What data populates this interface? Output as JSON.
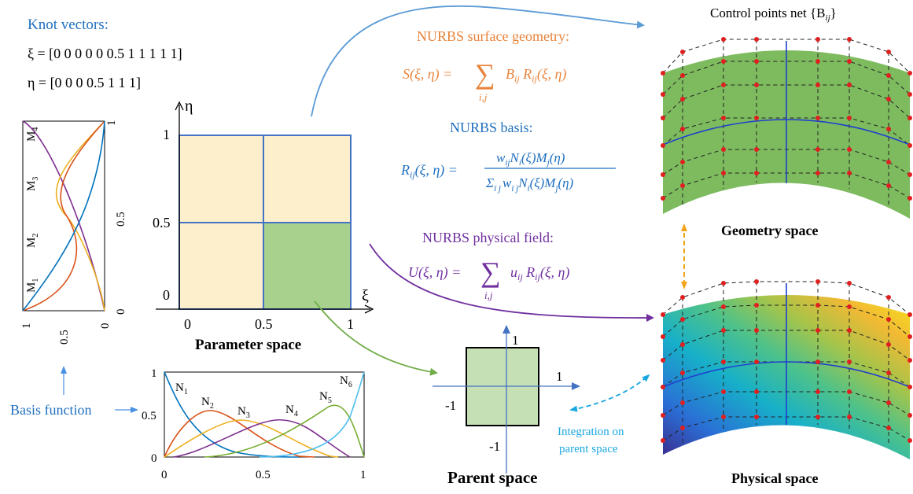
{
  "knot_vectors": {
    "title": "Knot vectors:",
    "xi": "ξ = [0 0 0 0 0 0.5 1 1 1 1 1]",
    "eta": "η = [0 0 0 0.5 1 1 1]"
  },
  "nurbs_surface": {
    "title": "NURBS surface geometry:",
    "lhs": "S(ξ, η) =",
    "sum_sub": "i,j",
    "rhs": "B",
    "rhs_sub": "ij",
    "rhs2": " R",
    "rhs2_sub": "ij",
    "rhs3": "(ξ, η)"
  },
  "nurbs_basis": {
    "title": "NURBS basis:",
    "lhs": "R",
    "lhs_sub": "ij",
    "lhs2": "(ξ, η) =",
    "num": "w",
    "num_sub": "ij",
    "num2": "N",
    "num2_sub": "i",
    "num3": "(ξ)M",
    "num3_sub": "j",
    "num4": "(η)",
    "den": "Σ",
    "den_sub": "î ĵ",
    "den2": "w",
    "den2_sub": "î ĵ",
    "den3": "N",
    "den3_sub": "î",
    "den4": "(ξ)M",
    "den4_sub": "ĵ",
    "den5": "(η)"
  },
  "nurbs_physical": {
    "title": "NURBS physical field:",
    "lhs": "U(ξ, η) =",
    "sum_sub": "i,j",
    "rhs": "u",
    "rhs_sub": "ij",
    "rhs2": " R",
    "rhs2_sub": "ij",
    "rhs3": "(ξ, η)"
  },
  "parameter_space": {
    "label": "Parameter space",
    "eta_axis": "η",
    "xi_axis": "ξ",
    "y_ticks": [
      "1",
      "0.5",
      "0"
    ],
    "x_ticks": [
      "0",
      "0.5",
      "1"
    ]
  },
  "vertical_basis": {
    "labels": [
      "M",
      "M",
      "M",
      "M"
    ],
    "subs": [
      "4",
      "3",
      "2",
      "1"
    ],
    "right_ticks": [
      "1",
      "0.5",
      "0"
    ],
    "bottom_ticks": [
      "1",
      "0.5",
      "0"
    ]
  },
  "horizontal_basis": {
    "labels": [
      "N",
      "N",
      "N",
      "N",
      "N",
      "N"
    ],
    "subs": [
      "1",
      "2",
      "3",
      "4",
      "5",
      "6"
    ],
    "y_ticks": [
      "1",
      "0.5",
      "0"
    ],
    "x_ticks": [
      "0",
      "0.5",
      "1"
    ]
  },
  "basis_function_label": "Basis function",
  "parent_space": {
    "label": "Parent space",
    "top": "1",
    "right": "1",
    "left": "-1",
    "bottom": "-1"
  },
  "integration_label_line1": "Integration on",
  "integration_label_line2": "parent space",
  "control_net_label": "Control points net {B",
  "control_net_sub": "ij",
  "control_net_end": "}",
  "geometry_space_label": "Geometry space",
  "physical_space_label": "Physical space",
  "colors": {
    "blue_text": "#1f6fbf",
    "orange_text": "#e8833a",
    "purple_text": "#7030a0",
    "cyan_text": "#1aa7e0",
    "green_fill": "#7dbb5e",
    "cream_fill": "#fdefcb",
    "light_green": "#a9d18e",
    "grid_blue": "#4472c4"
  }
}
